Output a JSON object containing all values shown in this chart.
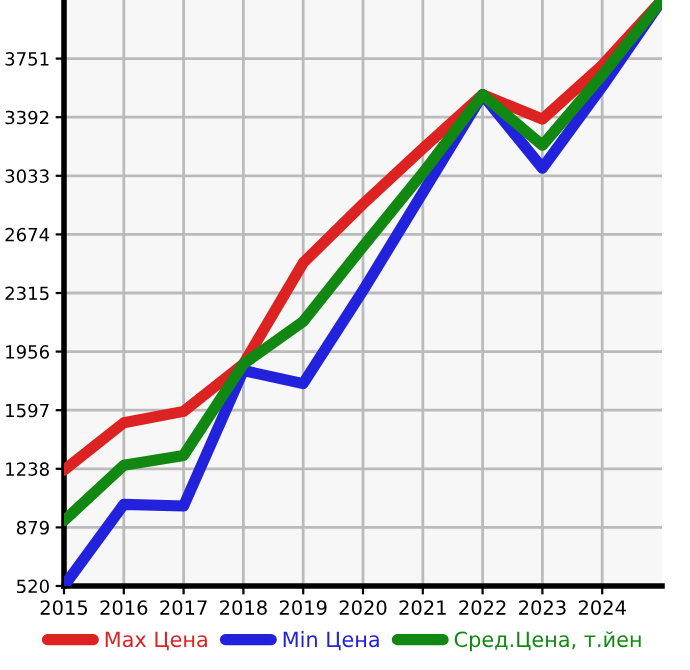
{
  "chart_data": {
    "type": "line",
    "x": [
      2015,
      2016,
      2017,
      2018,
      2019,
      2020,
      2021,
      2022,
      2023,
      2024,
      2025
    ],
    "series": [
      {
        "name": "Max Цена",
        "color": "#dd2222",
        "values": [
          1230,
          1520,
          1590,
          1880,
          2500,
          2860,
          3200,
          3530,
          3380,
          3710,
          4110
        ]
      },
      {
        "name": "Min Цена",
        "color": "#2222dd",
        "values": [
          520,
          1020,
          1010,
          1840,
          1760,
          2330,
          2930,
          3530,
          3080,
          3580,
          4110
        ]
      },
      {
        "name": "Сред.Цена, т.йен",
        "color": "#118811",
        "values": [
          920,
          1260,
          1320,
          1880,
          2140,
          2600,
          3050,
          3530,
          3220,
          3650,
          4110
        ]
      }
    ],
    "xlim": [
      2015,
      2025
    ],
    "xticks": [
      2015,
      2016,
      2017,
      2018,
      2019,
      2020,
      2021,
      2022,
      2023,
      2024
    ],
    "ylim": [
      520,
      4110
    ],
    "yticks": [
      520,
      879,
      1238,
      1597,
      1956,
      2315,
      2674,
      3033,
      3392,
      3751
    ],
    "grid": true,
    "legend": "bottom",
    "marker": "none",
    "line_style": "solid"
  }
}
